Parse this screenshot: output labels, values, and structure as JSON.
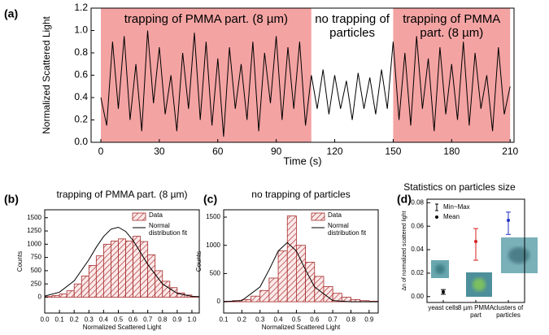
{
  "chart_data": [
    {
      "type": "line",
      "panel_label": "(a)",
      "xlabel": "Time (s)",
      "ylabel": "Normalized Scattered Light",
      "xlim": [
        -5,
        212
      ],
      "ylim": [
        0,
        1.2
      ],
      "xticks": [
        0,
        30,
        60,
        90,
        120,
        150,
        180,
        210
      ],
      "yticks": [
        {
          "value": 0,
          "label": "0.0"
        },
        0.2,
        0.4,
        0.6,
        0.8,
        {
          "value": 1,
          "label": "1.0"
        },
        1.2
      ],
      "regions": [
        {
          "start": 0,
          "end": 108,
          "label": "trapping of PMMA part. (8 µm)",
          "color": "#f4a3a3"
        },
        {
          "start": 150,
          "end": 210,
          "label": "trapping of PMMA part. (8 µm)",
          "color": "#f4a3a3"
        }
      ],
      "annotation": "no trapping of particles",
      "color": "#000000",
      "x": [
        0,
        3,
        6,
        9,
        12,
        15,
        18,
        21,
        24,
        27,
        30,
        33,
        36,
        39,
        42,
        45,
        48,
        51,
        54,
        57,
        60,
        63,
        66,
        69,
        72,
        75,
        78,
        81,
        84,
        87,
        90,
        93,
        96,
        99,
        102,
        105,
        108,
        111,
        114,
        117,
        120,
        123,
        126,
        129,
        132,
        135,
        138,
        141,
        144,
        147,
        150,
        153,
        156,
        159,
        162,
        165,
        168,
        171,
        174,
        177,
        180,
        183,
        186,
        189,
        192,
        195,
        198,
        201,
        204,
        207,
        210
      ],
      "values": [
        0.4,
        0.15,
        0.9,
        0.3,
        0.95,
        0.2,
        0.7,
        0.1,
        1.0,
        0.35,
        0.85,
        0.25,
        0.6,
        0.1,
        0.8,
        0.3,
        0.98,
        0.2,
        0.9,
        0.15,
        0.75,
        0.05,
        0.85,
        0.3,
        0.7,
        0.2,
        0.9,
        0.1,
        0.8,
        0.35,
        0.95,
        0.2,
        0.85,
        0.3,
        0.9,
        0.15,
        0.6,
        0.3,
        0.65,
        0.25,
        0.6,
        0.3,
        0.55,
        0.2,
        0.62,
        0.3,
        0.58,
        0.25,
        0.65,
        0.3,
        0.9,
        0.2,
        0.8,
        0.15,
        0.95,
        0.3,
        0.75,
        0.1,
        0.85,
        0.25,
        0.7,
        0.2,
        0.9,
        0.15,
        0.8,
        0.3,
        0.6,
        0.1,
        0.85,
        0.25,
        0.5
      ]
    },
    {
      "type": "histogram",
      "panel_label": "(b)",
      "title": "trapping of PMMA part. (8 µm)",
      "xlabel": "Normalized Scattered Light",
      "ylabel": "Counts",
      "xlim": [
        0,
        1.05
      ],
      "ylim": [
        -300,
        1650
      ],
      "xticks": [
        {
          "value": 0,
          "label": "0.0"
        },
        0.1,
        0.2,
        0.3,
        0.4,
        0.5,
        0.6,
        0.7,
        0.8,
        0.9,
        {
          "value": 1,
          "label": "1.0"
        }
      ],
      "yticks": [
        0,
        250,
        500,
        750,
        1000,
        1250,
        1500
      ],
      "bins": [
        0,
        0.05,
        0.1,
        0.15,
        0.2,
        0.25,
        0.3,
        0.35,
        0.4,
        0.45,
        0.5,
        0.55,
        0.6,
        0.65,
        0.7,
        0.75,
        0.8,
        0.85,
        0.9,
        0.95,
        1.0,
        1.05
      ],
      "counts": [
        10,
        30,
        60,
        120,
        250,
        400,
        600,
        780,
        1000,
        1060,
        1100,
        1060,
        1150,
        1050,
        800,
        500,
        300,
        180,
        80,
        40,
        10
      ],
      "series": [
        {
          "name": "Data",
          "color": "#a52a2a"
        },
        {
          "name": "Normal distribution fit",
          "color": "#000000",
          "x": [
            0,
            0.1,
            0.2,
            0.3,
            0.35,
            0.4,
            0.45,
            0.5,
            0.55,
            0.6,
            0.65,
            0.7,
            0.8,
            0.9,
            1.0,
            1.05
          ],
          "values": [
            21,
            95,
            308,
            707,
            940,
            1147,
            1283,
            1320,
            1241,
            1071,
            848,
            616,
            250,
            72,
            15,
            8
          ]
        }
      ]
    },
    {
      "type": "histogram",
      "panel_label": "(c)",
      "title": "no trapping of particles",
      "xlabel": "Normalized Scattered Light",
      "ylabel": "Counts",
      "xlim": [
        0.1,
        0.95
      ],
      "ylim": [
        -200,
        1630
      ],
      "xticks": [
        0.1,
        0.2,
        0.3,
        0.4,
        0.5,
        0.6,
        0.7,
        0.8,
        0.9
      ],
      "yticks": [
        0,
        500,
        1000,
        1500
      ],
      "bins": [
        0.1,
        0.15,
        0.2,
        0.25,
        0.3,
        0.35,
        0.4,
        0.45,
        0.5,
        0.55,
        0.6,
        0.65,
        0.7,
        0.75,
        0.8,
        0.85,
        0.9,
        0.95
      ],
      "counts": [
        10,
        20,
        40,
        100,
        200,
        420,
        900,
        1520,
        1000,
        700,
        450,
        270,
        150,
        80,
        40,
        20,
        10
      ],
      "series": [
        {
          "name": "Data",
          "color": "#a52a2a"
        },
        {
          "name": "Normal distribution fit",
          "color": "#000000",
          "x": [
            0.1,
            0.2,
            0.3,
            0.35,
            0.4,
            0.45,
            0.5,
            0.55,
            0.6,
            0.7,
            0.8,
            0.95
          ],
          "values": [
            0,
            22,
            262,
            566,
            900,
            1050,
            900,
            566,
            262,
            22,
            1,
            0
          ]
        }
      ]
    },
    {
      "type": "scatter",
      "panel_label": "(d)",
      "title": "Statistics on particles size",
      "ylabel": "Δn of normalized scattered light",
      "ylim": [
        -0.005,
        0.083
      ],
      "yticks": [
        {
          "value": 0,
          "label": "0.00"
        },
        {
          "value": 0.02,
          "label": "0.02"
        },
        {
          "value": 0.04,
          "label": "0.04"
        },
        {
          "value": 0.06,
          "label": "0.06"
        },
        {
          "value": 0.08,
          "label": "0.08"
        }
      ],
      "categories": [
        "yeast cells",
        "8 µm PMMA part",
        "clusters of particles"
      ],
      "colors": [
        "#000000",
        "#d62020",
        "#2030c0"
      ],
      "series": [
        {
          "name": "Min~Max",
          "low": [
            0.002,
            0.031,
            0.053
          ],
          "high": [
            0.006,
            0.058,
            0.072
          ]
        },
        {
          "name": "Mean",
          "values": [
            0.004,
            0.047,
            0.065
          ]
        }
      ]
    }
  ]
}
